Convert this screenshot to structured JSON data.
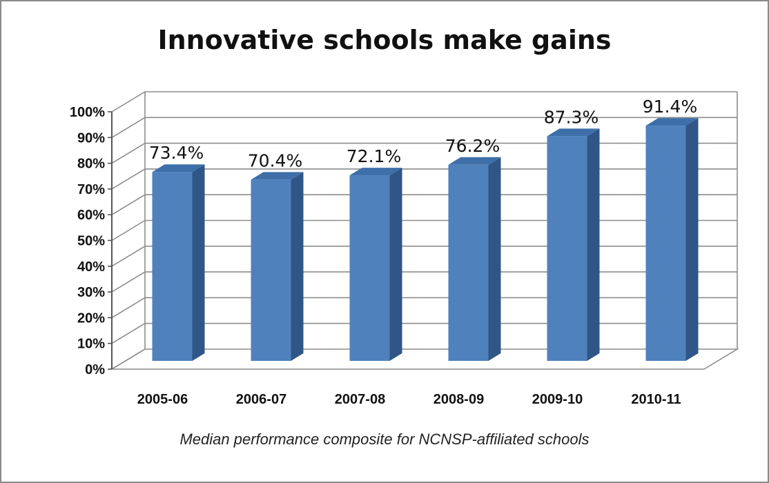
{
  "chart_data": {
    "type": "bar",
    "title": "Innovative schools make gains",
    "caption": "Median performance composite for NCNSP-affiliated  schools",
    "categories": [
      "2005-06",
      "2006-07",
      "2007-08",
      "2008-09",
      "2009-10",
      "2010-11"
    ],
    "values": [
      73.4,
      70.4,
      72.1,
      76.2,
      87.3,
      91.4
    ],
    "data_labels": [
      "73.4%",
      "70.4%",
      "72.1%",
      "76.2%",
      "87.3%",
      "91.4%"
    ],
    "y_ticks": [
      "0%",
      "10%",
      "20%",
      "30%",
      "40%",
      "50%",
      "60%",
      "70%",
      "80%",
      "90%",
      "100%"
    ],
    "ylim": [
      0,
      100
    ],
    "grid": true,
    "legend": "none",
    "bar_color": "#4f81bd",
    "bar_side_color": "#2f5687",
    "bar_top_color": "#3f6fa8"
  }
}
